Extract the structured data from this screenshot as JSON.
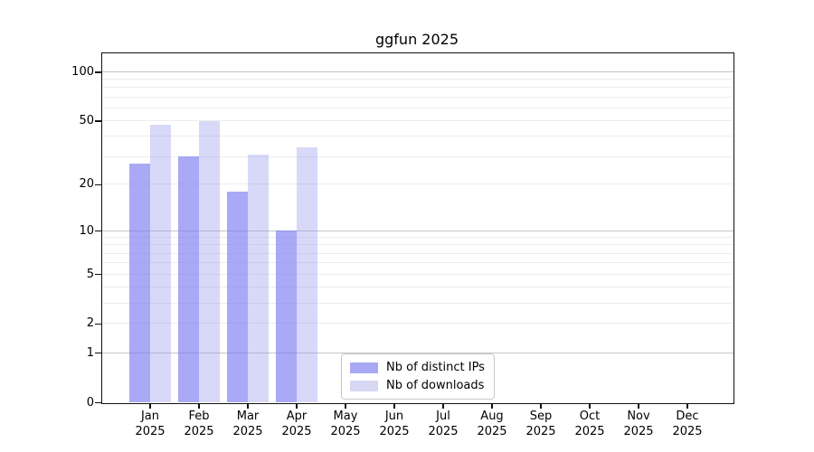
{
  "chart_data": {
    "type": "bar",
    "title": "ggfun 2025",
    "year": "2025",
    "categories": [
      "Jan",
      "Feb",
      "Mar",
      "Apr",
      "May",
      "Jun",
      "Jul",
      "Aug",
      "Sep",
      "Oct",
      "Nov",
      "Dec"
    ],
    "series": [
      {
        "name": "Nb of distinct IPs",
        "key": "distinct-ips",
        "swatch_color": "#a8a8f5",
        "fill": "rgba(120,120,240,0.64)",
        "values": [
          27,
          30,
          18,
          10,
          null,
          null,
          null,
          null,
          null,
          null,
          null,
          null
        ]
      },
      {
        "name": "Nb of downloads",
        "key": "downloads",
        "swatch_color": "#d8d8f5",
        "fill": "rgba(150,150,240,0.37)",
        "values": [
          47,
          50,
          31,
          34,
          null,
          null,
          null,
          null,
          null,
          null,
          null,
          null
        ]
      }
    ],
    "y_scale": "log1p",
    "ylim": [
      0,
      130
    ],
    "y_ticks": [
      0,
      1,
      2,
      5,
      10,
      20,
      50,
      100
    ],
    "y_major_gridlines": [
      1,
      10,
      100
    ],
    "y_minor_gridlines": [
      2,
      3,
      4,
      5,
      6,
      7,
      8,
      9,
      20,
      30,
      40,
      50,
      60,
      70,
      80,
      90
    ],
    "grid": {
      "major_color": "#c6c6c6",
      "minor_color": "#ededed"
    },
    "axis_color": "#111111",
    "legend_position": "bottom-center"
  }
}
